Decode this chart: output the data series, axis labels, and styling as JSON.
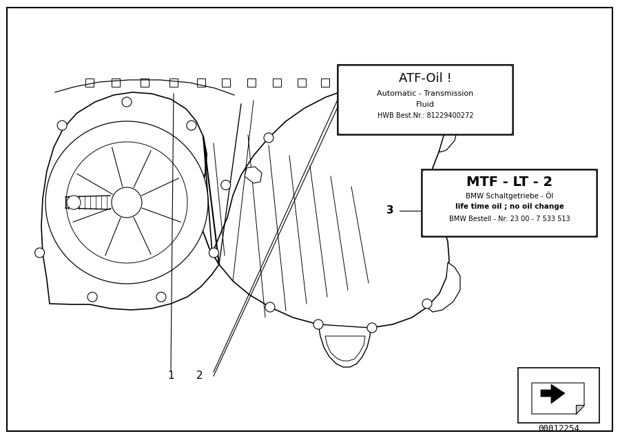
{
  "bg_color": "#ffffff",
  "border_color": "#000000",
  "part_number": "00012254",
  "label1": "1",
  "label2": "2",
  "label3": "3",
  "box2_title": "ATF-Oil !",
  "box2_line1": "Automatic - Transmission",
  "box2_line2": "Fluid",
  "box2_line3": "HWB Best.Nr.: 81229400272",
  "box3_title": "MTF - LT - 2",
  "box3_line1": "BMW Schaltgetriebe - Öl",
  "box3_line2": "life time oil ; no oil change",
  "box3_line3": "BMW Bestell - Nr: 23 00 - 7 533 513",
  "lw": 1.0,
  "col": "#000000"
}
